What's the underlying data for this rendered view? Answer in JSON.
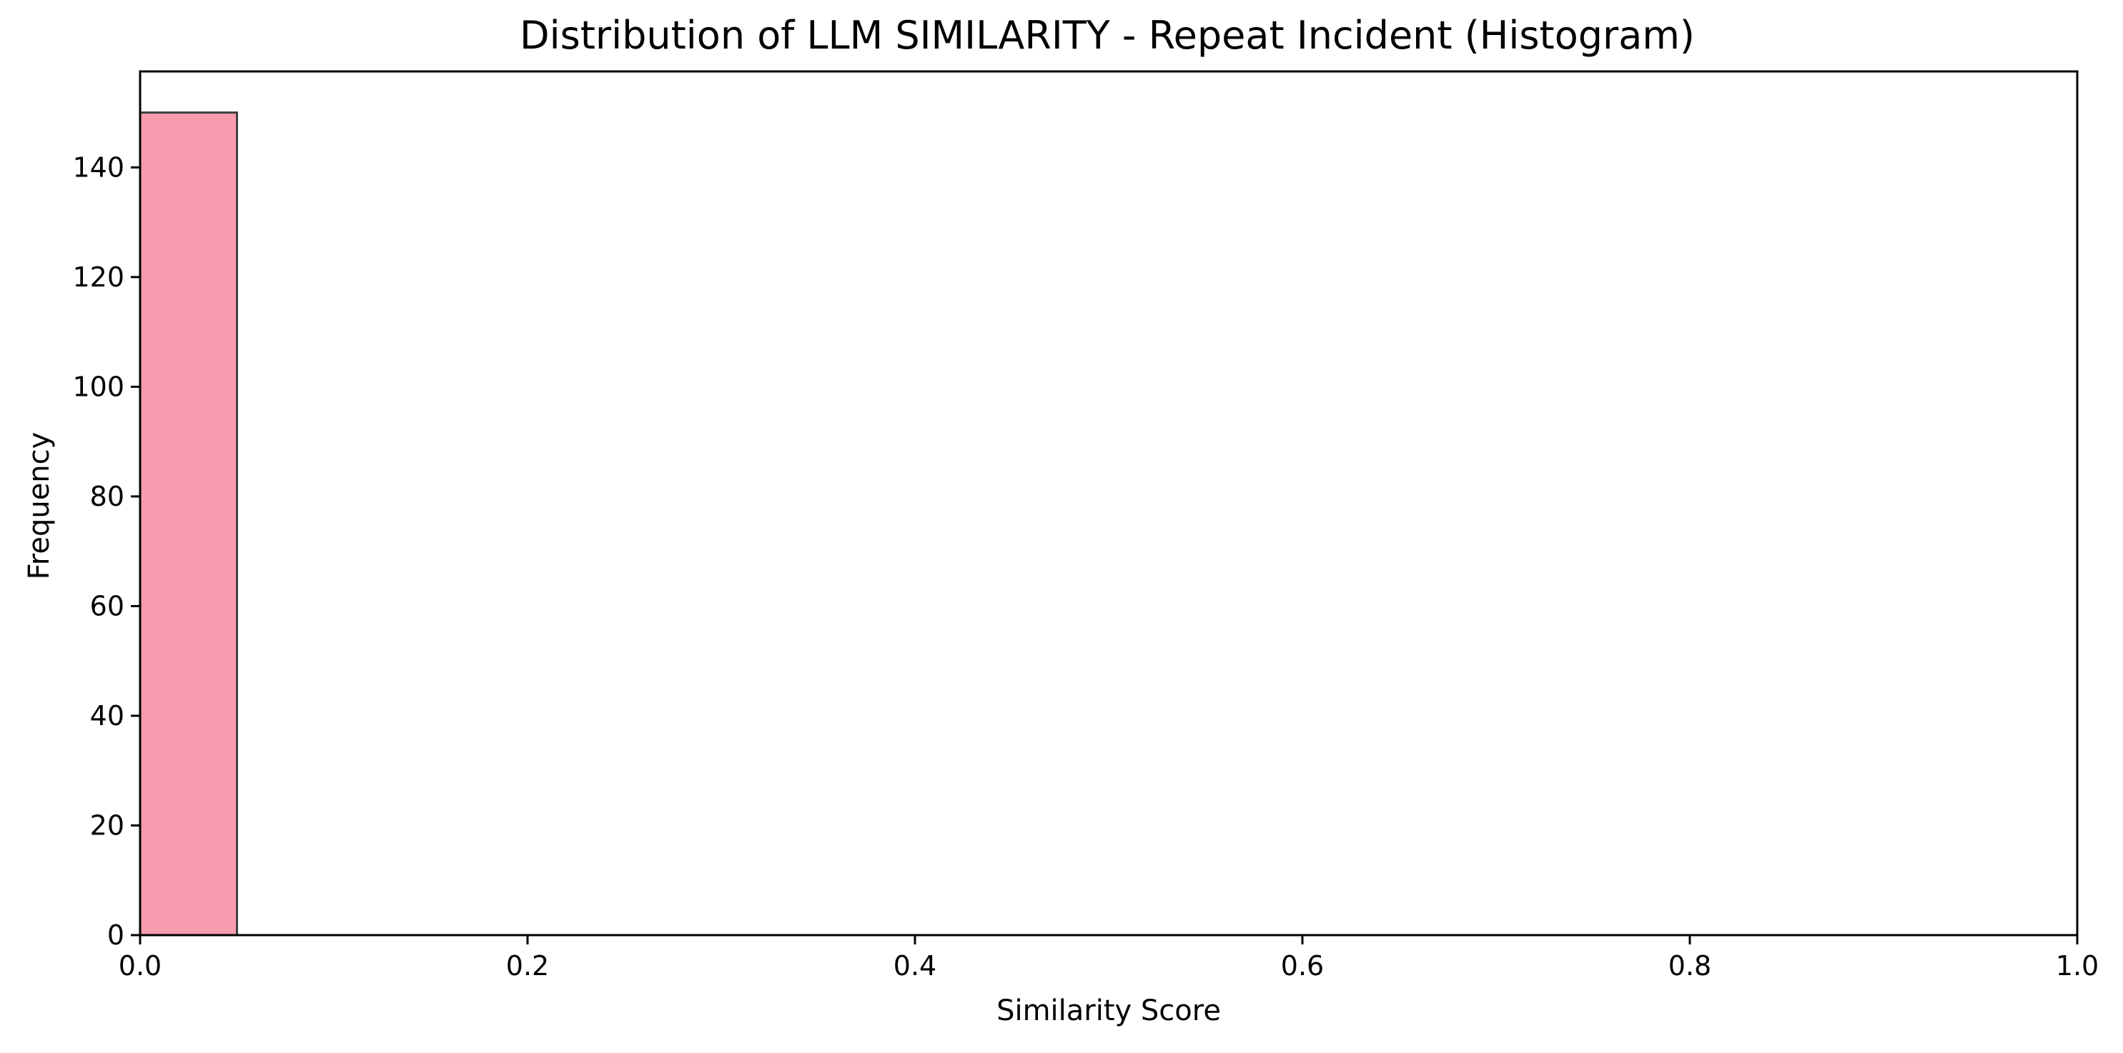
{
  "chart_data": {
    "type": "bar",
    "title": "Distribution of LLM SIMILARITY - Repeat Incident (Histogram)",
    "xlabel": "Similarity Score",
    "ylabel": "Frequency",
    "xlim": [
      0.0,
      1.0
    ],
    "ylim": [
      0,
      157.5
    ],
    "x_ticks": [
      "0.0",
      "0.2",
      "0.4",
      "0.6",
      "0.8",
      "1.0"
    ],
    "y_ticks": [
      "0",
      "20",
      "40",
      "60",
      "80",
      "100",
      "120",
      "140"
    ],
    "bins": [
      {
        "start": 0.0,
        "end": 0.05,
        "value": 150
      }
    ],
    "grid": false,
    "colors": {
      "bar_fill": "#f79cae",
      "bar_edge": "#404040",
      "axis": "#000000"
    }
  }
}
